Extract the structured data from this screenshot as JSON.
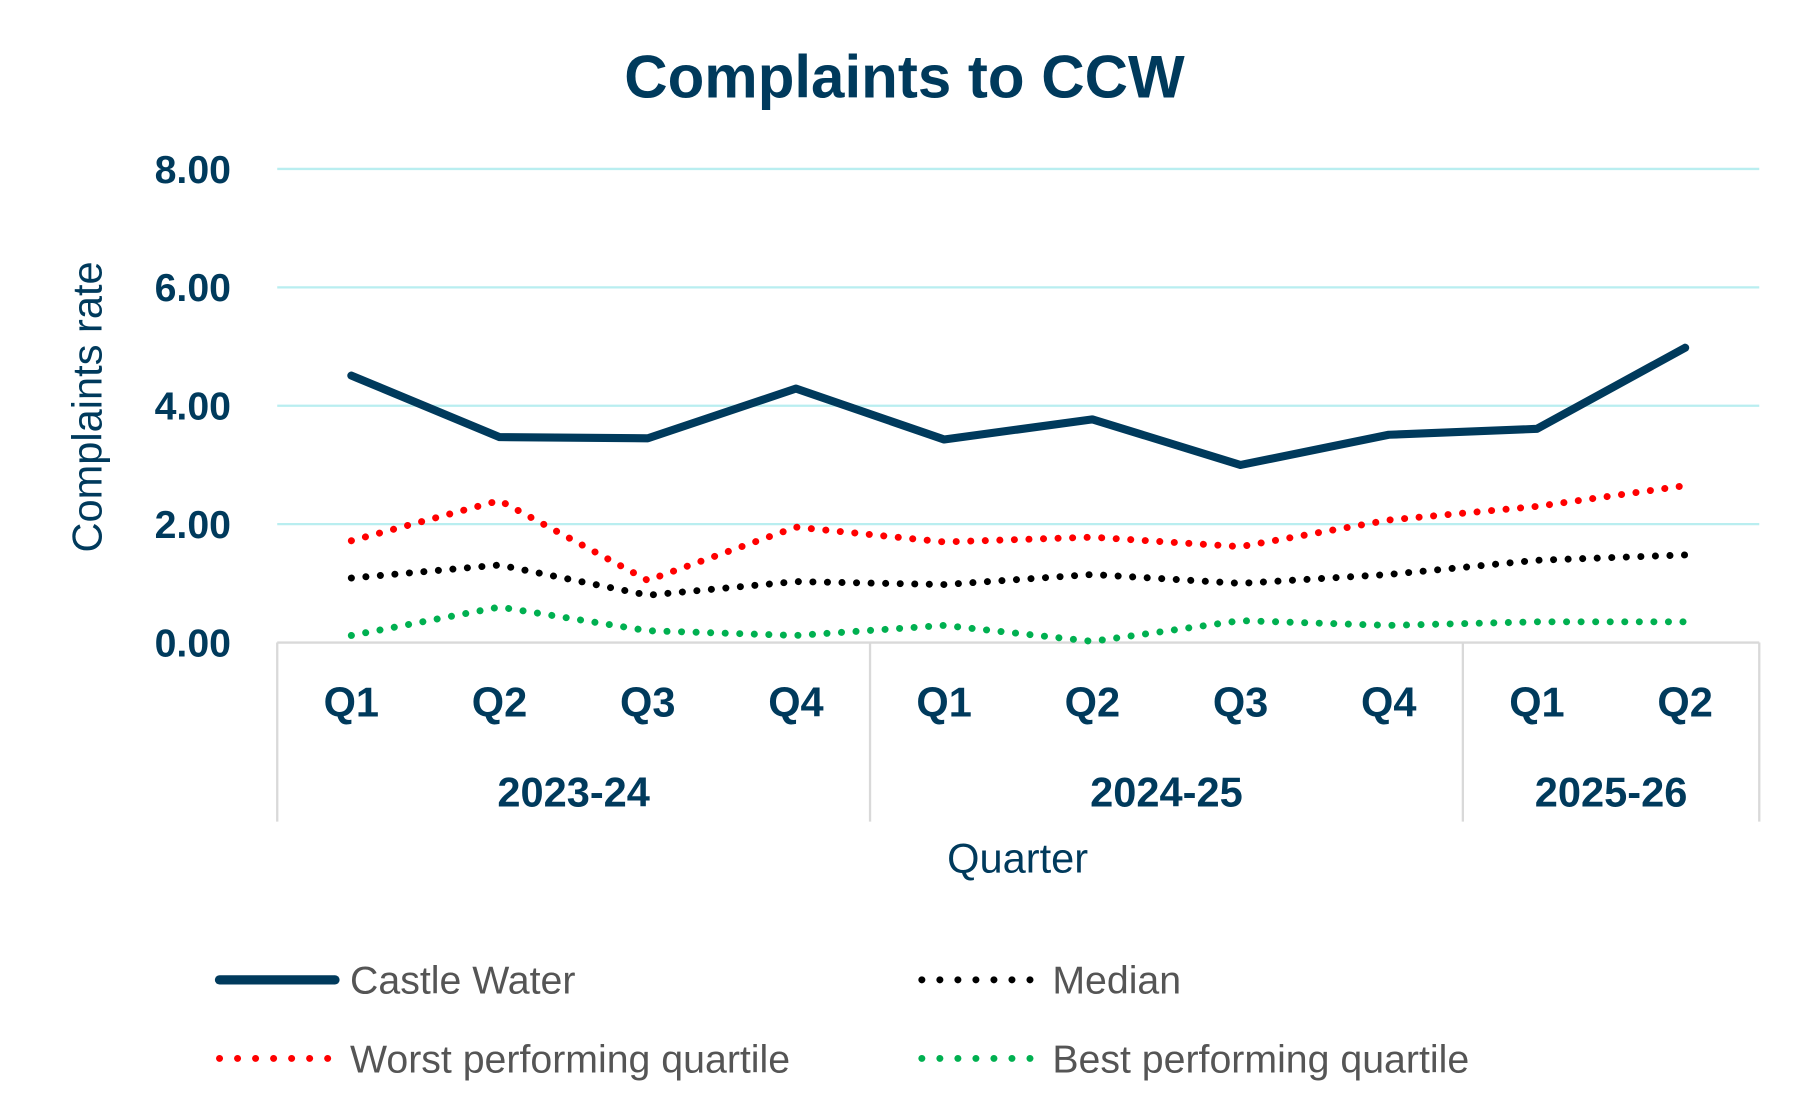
{
  "chart_data": {
    "type": "line",
    "title": "Complaints to CCW",
    "xlabel": "Quarter",
    "ylabel": "Complaints rate",
    "ylim": [
      0,
      8
    ],
    "yticks": [
      "0.00",
      "2.00",
      "4.00",
      "6.00",
      "8.00"
    ],
    "grid": true,
    "legend_placement": "bottom",
    "categories": [
      "Q1",
      "Q2",
      "Q3",
      "Q4",
      "Q1",
      "Q2",
      "Q3",
      "Q4",
      "Q1",
      "Q2"
    ],
    "groups": [
      {
        "label": "2023-24",
        "count": 4
      },
      {
        "label": "2024-25",
        "count": 4
      },
      {
        "label": "2025-26",
        "count": 2
      }
    ],
    "series": [
      {
        "name": "Castle Water",
        "color": "#003a5c",
        "style": "solid",
        "values": [
          4.51,
          3.47,
          3.45,
          4.29,
          3.43,
          3.77,
          3.0,
          3.51,
          3.61,
          4.98
        ]
      },
      {
        "name": "Median",
        "color": "#000000",
        "style": "dotted",
        "values": [
          1.09,
          1.31,
          0.8,
          1.03,
          0.98,
          1.15,
          1.0,
          1.15,
          1.39,
          1.48
        ]
      },
      {
        "name": "Worst performing quartile",
        "color": "#ff0000",
        "style": "dotted",
        "values": [
          1.72,
          2.4,
          1.05,
          1.95,
          1.7,
          1.78,
          1.62,
          2.07,
          2.3,
          2.65
        ]
      },
      {
        "name": "Best performing quartile",
        "color": "#00b050",
        "style": "dotted",
        "values": [
          0.12,
          0.6,
          0.2,
          0.12,
          0.29,
          0.02,
          0.37,
          0.29,
          0.35,
          0.35
        ]
      }
    ],
    "grid_color": "#b9eef0"
  }
}
